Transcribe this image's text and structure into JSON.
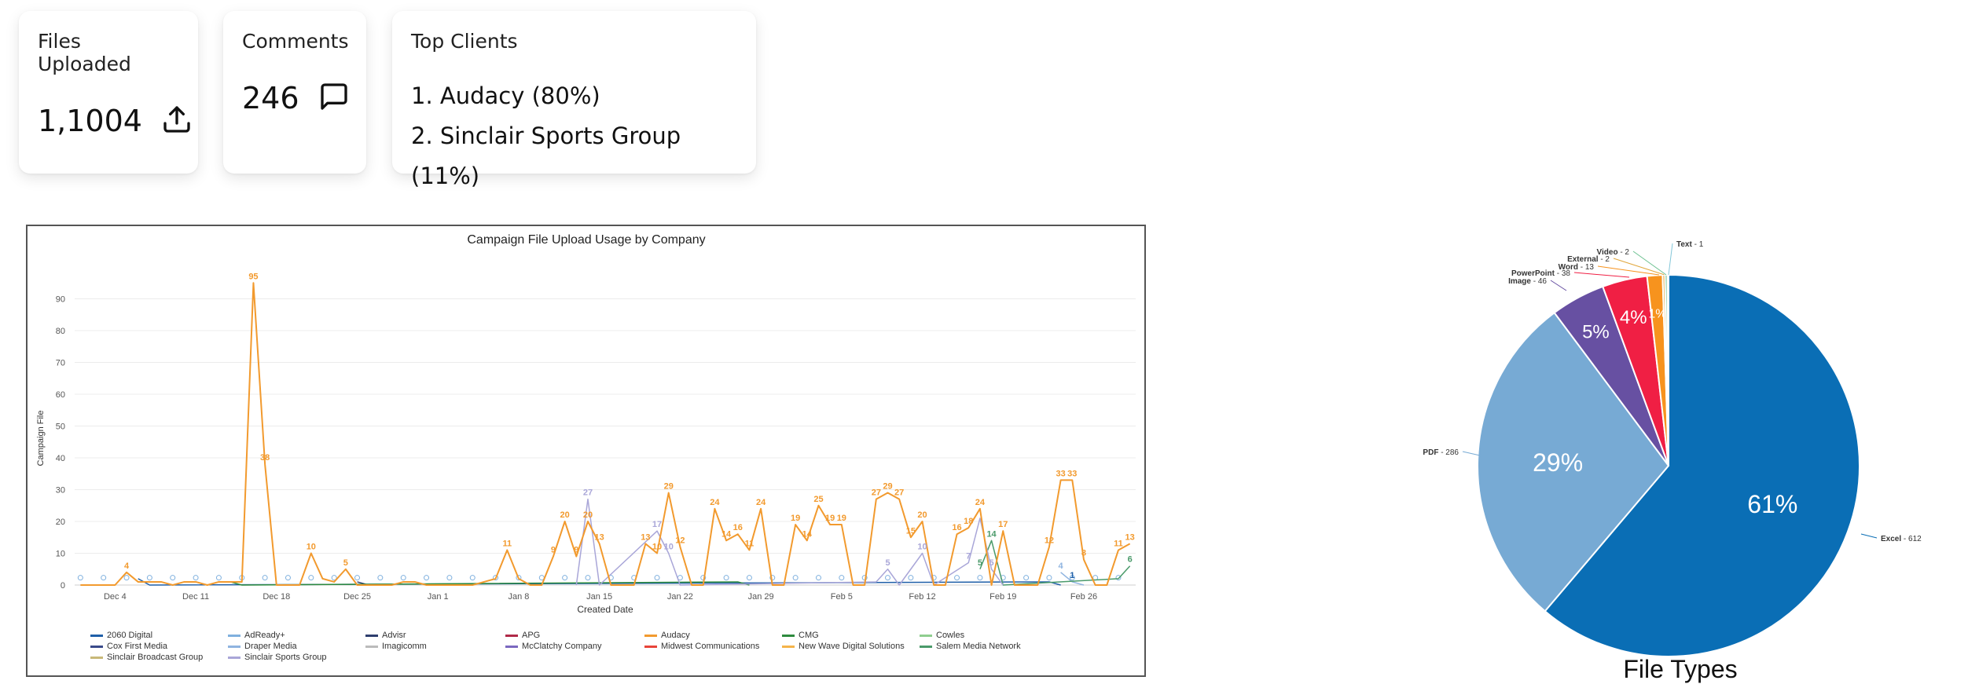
{
  "cards": {
    "files": {
      "title": "Files Uploaded",
      "value": "1,1004",
      "icon": "upload-icon"
    },
    "comments": {
      "title": "Comments",
      "value": "246",
      "icon": "comment-icon"
    },
    "clients": {
      "title": "Top Clients",
      "items": [
        "1. Audacy (80%)",
        "2. Sinclair Sports Group (11%)"
      ]
    }
  },
  "chart_data": [
    {
      "type": "line",
      "title": "Campaign File Upload Usage by Company",
      "xlabel": "Created Date",
      "ylabel": "Campaign File",
      "ylim": [
        0,
        95
      ],
      "yticks": [
        0,
        10,
        20,
        30,
        40,
        50,
        60,
        70,
        80,
        90
      ],
      "xticks": [
        "Dec 4",
        "Dec 11",
        "Dec 18",
        "Dec 25",
        "Jan 1",
        "Jan 8",
        "Jan 15",
        "Jan 22",
        "Jan 29",
        "Feb 5",
        "Feb 12",
        "Feb 19",
        "Feb 26"
      ],
      "x_start": "Dec 1",
      "x_end": "Feb 28",
      "grid": true,
      "legend_position": "bottom",
      "series": [
        {
          "name": "2060 Digital",
          "color": "#1f5fa8",
          "points": [
            [
              5,
              2
            ],
            [
              6,
              0
            ],
            [
              84,
              1
            ],
            [
              85,
              0
            ]
          ]
        },
        {
          "name": "AdReady+",
          "color": "#7fb0de",
          "points": []
        },
        {
          "name": "Advisr",
          "color": "#2e3e6e",
          "points": [
            [
              24,
              1
            ],
            [
              25,
              0
            ]
          ]
        },
        {
          "name": "APG",
          "color": "#b02a48",
          "points": []
        },
        {
          "name": "Audacy",
          "color": "#f29a2e",
          "points": [
            [
              0,
              0
            ],
            [
              1,
              0
            ],
            [
              2,
              0
            ],
            [
              3,
              0
            ],
            [
              4,
              4
            ],
            [
              5,
              1
            ],
            [
              6,
              1
            ],
            [
              7,
              1
            ],
            [
              8,
              0
            ],
            [
              9,
              1
            ],
            [
              10,
              1
            ],
            [
              11,
              0
            ],
            [
              12,
              1
            ],
            [
              13,
              1
            ],
            [
              14,
              1
            ],
            [
              15,
              95
            ],
            [
              16,
              38
            ],
            [
              17,
              0
            ],
            [
              18,
              0
            ],
            [
              19,
              0
            ],
            [
              20,
              10
            ],
            [
              21,
              2
            ],
            [
              22,
              1
            ],
            [
              23,
              5
            ],
            [
              24,
              0
            ],
            [
              25,
              0
            ],
            [
              26,
              0
            ],
            [
              27,
              0
            ],
            [
              28,
              1
            ],
            [
              29,
              1
            ],
            [
              30,
              0
            ],
            [
              31,
              0
            ],
            [
              32,
              0
            ],
            [
              33,
              0
            ],
            [
              34,
              0
            ],
            [
              35,
              1
            ],
            [
              36,
              2
            ],
            [
              37,
              11
            ],
            [
              38,
              2
            ],
            [
              39,
              0
            ],
            [
              40,
              0
            ],
            [
              41,
              9
            ],
            [
              42,
              20
            ],
            [
              43,
              9
            ],
            [
              44,
              20
            ],
            [
              45,
              13
            ],
            [
              46,
              0
            ],
            [
              47,
              0
            ],
            [
              48,
              0
            ],
            [
              49,
              13
            ],
            [
              50,
              10
            ],
            [
              51,
              29
            ],
            [
              52,
              12
            ],
            [
              53,
              0
            ],
            [
              54,
              0
            ],
            [
              55,
              24
            ],
            [
              56,
              14
            ],
            [
              57,
              16
            ],
            [
              58,
              11
            ],
            [
              59,
              24
            ],
            [
              60,
              0
            ],
            [
              61,
              0
            ],
            [
              62,
              19
            ],
            [
              63,
              14
            ],
            [
              64,
              25
            ],
            [
              65,
              19
            ],
            [
              66,
              19
            ],
            [
              67,
              0
            ],
            [
              68,
              0
            ],
            [
              69,
              27
            ],
            [
              70,
              29
            ],
            [
              71,
              27
            ],
            [
              72,
              15
            ],
            [
              73,
              20
            ],
            [
              74,
              0
            ],
            [
              75,
              0
            ],
            [
              76,
              16
            ],
            [
              77,
              18
            ],
            [
              78,
              24
            ],
            [
              79,
              0
            ],
            [
              80,
              17
            ],
            [
              81,
              0
            ],
            [
              82,
              0
            ],
            [
              83,
              0
            ],
            [
              84,
              12
            ],
            [
              85,
              33
            ],
            [
              86,
              33
            ],
            [
              87,
              8
            ],
            [
              88,
              0
            ],
            [
              89,
              0
            ],
            [
              90,
              11
            ],
            [
              91,
              13
            ]
          ]
        },
        {
          "name": "CMG",
          "color": "#2e8b3e",
          "points": [
            [
              13,
              1
            ],
            [
              14,
              0
            ],
            [
              57,
              1
            ],
            [
              58,
              0
            ]
          ]
        },
        {
          "name": "Cowles",
          "color": "#8fce8f",
          "points": []
        },
        {
          "name": "Cox First Media",
          "color": "#3a4a8a",
          "points": []
        },
        {
          "name": "Draper Media",
          "color": "#8fb4e0",
          "points": [
            [
              85,
              4
            ],
            [
              86,
              1
            ],
            [
              87,
              0
            ]
          ]
        },
        {
          "name": "Imagicomm",
          "color": "#bbbbbb",
          "points": []
        },
        {
          "name": "McClatchy Company",
          "color": "#7b68c0",
          "points": []
        },
        {
          "name": "Midwest Communications",
          "color": "#e8443a",
          "points": []
        },
        {
          "name": "New Wave Digital Solutions",
          "color": "#f5b44a",
          "points": []
        },
        {
          "name": "Salem Media Network",
          "color": "#4a9a6a",
          "points": [
            [
              78,
              5
            ],
            [
              79,
              14
            ],
            [
              80,
              0
            ],
            [
              90,
              2
            ],
            [
              91,
              6
            ]
          ]
        },
        {
          "name": "Sinclair Broadcast Group",
          "color": "#c8b878",
          "points": []
        },
        {
          "name": "Sinclair Sports Group",
          "color": "#a9a6d8",
          "points": [
            [
              43,
              0
            ],
            [
              44,
              27
            ],
            [
              45,
              0
            ],
            [
              50,
              17
            ],
            [
              51,
              10
            ],
            [
              52,
              0
            ],
            [
              69,
              1
            ],
            [
              70,
              5
            ],
            [
              71,
              0
            ],
            [
              73,
              10
            ],
            [
              74,
              0
            ],
            [
              77,
              7
            ],
            [
              78,
              21
            ],
            [
              79,
              5
            ],
            [
              80,
              0
            ]
          ]
        }
      ],
      "labels": [
        {
          "x": 4,
          "y": 4,
          "text": "4",
          "color": "#f29a2e"
        },
        {
          "x": 15,
          "y": 95,
          "text": "95",
          "color": "#f29a2e"
        },
        {
          "x": 16,
          "y": 38,
          "text": "38",
          "color": "#f29a2e"
        },
        {
          "x": 20,
          "y": 10,
          "text": "10",
          "color": "#f29a2e"
        },
        {
          "x": 23,
          "y": 5,
          "text": "5",
          "color": "#f29a2e"
        },
        {
          "x": 37,
          "y": 11,
          "text": "11",
          "color": "#f29a2e"
        },
        {
          "x": 41,
          "y": 9,
          "text": "9",
          "color": "#f29a2e"
        },
        {
          "x": 42,
          "y": 20,
          "text": "20",
          "color": "#f29a2e"
        },
        {
          "x": 43,
          "y": 9,
          "text": "9",
          "color": "#f29a2e"
        },
        {
          "x": 44,
          "y": 20,
          "text": "20",
          "color": "#f29a2e"
        },
        {
          "x": 45,
          "y": 13,
          "text": "13",
          "color": "#f29a2e"
        },
        {
          "x": 44,
          "y": 27,
          "text": "27",
          "color": "#a9a6d8"
        },
        {
          "x": 49,
          "y": 13,
          "text": "13",
          "color": "#f29a2e"
        },
        {
          "x": 50,
          "y": 10,
          "text": "10",
          "color": "#f29a2e"
        },
        {
          "x": 50,
          "y": 17,
          "text": "17",
          "color": "#a9a6d8"
        },
        {
          "x": 51,
          "y": 10,
          "text": "10",
          "color": "#a9a6d8"
        },
        {
          "x": 51,
          "y": 29,
          "text": "29",
          "color": "#f29a2e"
        },
        {
          "x": 52,
          "y": 12,
          "text": "12",
          "color": "#f29a2e"
        },
        {
          "x": 55,
          "y": 24,
          "text": "24",
          "color": "#f29a2e"
        },
        {
          "x": 56,
          "y": 14,
          "text": "14",
          "color": "#f29a2e"
        },
        {
          "x": 57,
          "y": 16,
          "text": "16",
          "color": "#f29a2e"
        },
        {
          "x": 58,
          "y": 11,
          "text": "11",
          "color": "#f29a2e"
        },
        {
          "x": 59,
          "y": 24,
          "text": "24",
          "color": "#f29a2e"
        },
        {
          "x": 62,
          "y": 19,
          "text": "19",
          "color": "#f29a2e"
        },
        {
          "x": 63,
          "y": 14,
          "text": "14",
          "color": "#f29a2e"
        },
        {
          "x": 64,
          "y": 25,
          "text": "25",
          "color": "#f29a2e"
        },
        {
          "x": 65,
          "y": 19,
          "text": "19",
          "color": "#f29a2e"
        },
        {
          "x": 66,
          "y": 19,
          "text": "19",
          "color": "#f29a2e"
        },
        {
          "x": 69,
          "y": 27,
          "text": "27",
          "color": "#f29a2e"
        },
        {
          "x": 70,
          "y": 29,
          "text": "29",
          "color": "#f29a2e"
        },
        {
          "x": 71,
          "y": 27,
          "text": "27",
          "color": "#f29a2e"
        },
        {
          "x": 70,
          "y": 5,
          "text": "5",
          "color": "#a9a6d8"
        },
        {
          "x": 72,
          "y": 15,
          "text": "15",
          "color": "#f29a2e"
        },
        {
          "x": 73,
          "y": 20,
          "text": "20",
          "color": "#f29a2e"
        },
        {
          "x": 73,
          "y": 10,
          "text": "10",
          "color": "#a9a6d8"
        },
        {
          "x": 76,
          "y": 16,
          "text": "16",
          "color": "#f29a2e"
        },
        {
          "x": 77,
          "y": 18,
          "text": "18",
          "color": "#f29a2e"
        },
        {
          "x": 77,
          "y": 7,
          "text": "7",
          "color": "#a9a6d8"
        },
        {
          "x": 78,
          "y": 24,
          "text": "24",
          "color": "#f29a2e"
        },
        {
          "x": 78,
          "y": 5,
          "text": "5",
          "color": "#4a9a6a"
        },
        {
          "x": 79,
          "y": 14,
          "text": "14",
          "color": "#4a9a6a"
        },
        {
          "x": 79,
          "y": 5,
          "text": "5",
          "color": "#a9a6d8"
        },
        {
          "x": 80,
          "y": 17,
          "text": "17",
          "color": "#f29a2e"
        },
        {
          "x": 84,
          "y": 12,
          "text": "12",
          "color": "#f29a2e"
        },
        {
          "x": 85,
          "y": 33,
          "text": "33",
          "color": "#f29a2e"
        },
        {
          "x": 86,
          "y": 33,
          "text": "33",
          "color": "#f29a2e"
        },
        {
          "x": 85,
          "y": 4,
          "text": "4",
          "color": "#8fb4e0"
        },
        {
          "x": 86,
          "y": 1,
          "text": "1",
          "color": "#1f5fa8"
        },
        {
          "x": 87,
          "y": 8,
          "text": "8",
          "color": "#f29a2e"
        },
        {
          "x": 90,
          "y": 11,
          "text": "11",
          "color": "#f29a2e"
        },
        {
          "x": 91,
          "y": 13,
          "text": "13",
          "color": "#f29a2e"
        },
        {
          "x": 91,
          "y": 6,
          "text": "6",
          "color": "#4a9a6a"
        }
      ]
    },
    {
      "type": "pie",
      "title": "File Types",
      "slices": [
        {
          "name": "Excel",
          "value": 612,
          "color": "#0a6eb5",
          "pct_label": "61%"
        },
        {
          "name": "PDF",
          "value": 286,
          "color": "#77aad4",
          "pct_label": "29%"
        },
        {
          "name": "Image",
          "value": 46,
          "color": "#6750a2",
          "pct_label": "5%"
        },
        {
          "name": "PowerPoint",
          "value": 38,
          "color": "#f01f44",
          "pct_label": "4%"
        },
        {
          "name": "Word",
          "value": 13,
          "color": "#f7931e",
          "pct_label": "1%"
        },
        {
          "name": "External",
          "value": 2,
          "color": "#e0a63a",
          "pct_label": ""
        },
        {
          "name": "Video",
          "value": 2,
          "color": "#6cc18f",
          "pct_label": ""
        },
        {
          "name": "Text",
          "value": 1,
          "color": "#82c6d8",
          "pct_label": ""
        }
      ]
    }
  ]
}
